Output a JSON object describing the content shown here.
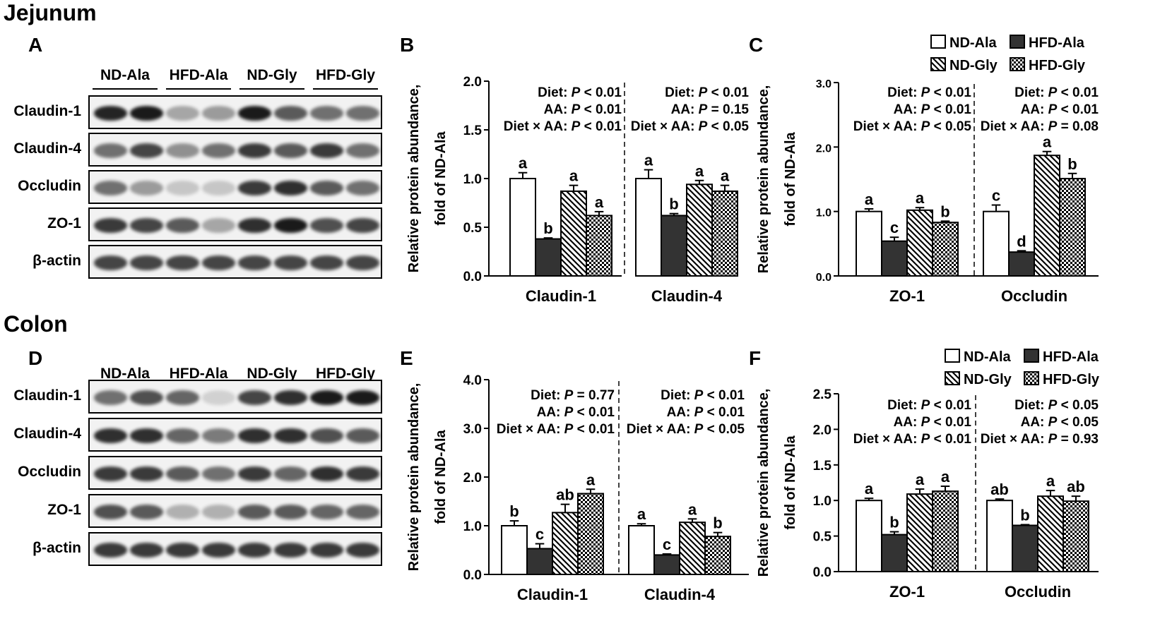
{
  "sections": {
    "jejunum": "Jejunum",
    "colon": "Colon"
  },
  "panel_letters": {
    "A": "A",
    "B": "B",
    "C": "C",
    "D": "D",
    "E": "E",
    "F": "F"
  },
  "colors": {
    "ink": "#000000",
    "hfd_fill": "#333333",
    "band": "#1a1a1a",
    "strip_bg": "#f2f2f2"
  },
  "legend": {
    "nd_ala": "ND-Ala",
    "hfd_ala": "HFD-Ala",
    "nd_gly": "ND-Gly",
    "hfd_gly": "HFD-Gly"
  },
  "blots": {
    "A": {
      "lanes": [
        "ND-Ala",
        "HFD-Ala",
        "ND-Gly",
        "HFD-Gly"
      ],
      "rows": [
        {
          "label": "Claudin-1",
          "intensity": [
            0.95,
            1.0,
            0.35,
            0.4,
            1.0,
            0.7,
            0.6,
            0.6
          ]
        },
        {
          "label": "Claudin-4",
          "intensity": [
            0.6,
            0.8,
            0.45,
            0.6,
            0.85,
            0.7,
            0.85,
            0.6
          ]
        },
        {
          "label": "Occludin",
          "intensity": [
            0.6,
            0.4,
            0.2,
            0.2,
            0.85,
            0.9,
            0.7,
            0.6
          ]
        },
        {
          "label": "ZO-1",
          "intensity": [
            0.85,
            0.8,
            0.7,
            0.35,
            0.9,
            1.0,
            0.75,
            0.8
          ]
        },
        {
          "label": "β-actin",
          "intensity": [
            0.8,
            0.8,
            0.8,
            0.8,
            0.8,
            0.8,
            0.8,
            0.8
          ]
        }
      ]
    },
    "D": {
      "lanes": [
        "ND-Ala",
        "HFD-Ala",
        "ND-Gly",
        "HFD-Gly"
      ],
      "rows": [
        {
          "label": "Claudin-1",
          "intensity": [
            0.6,
            0.75,
            0.65,
            0.15,
            0.8,
            0.9,
            1.0,
            1.0
          ]
        },
        {
          "label": "Claudin-4",
          "intensity": [
            0.9,
            0.9,
            0.65,
            0.55,
            0.9,
            0.9,
            0.75,
            0.7
          ]
        },
        {
          "label": "Occludin",
          "intensity": [
            0.85,
            0.85,
            0.7,
            0.6,
            0.85,
            0.65,
            0.9,
            0.85
          ]
        },
        {
          "label": "ZO-1",
          "intensity": [
            0.75,
            0.7,
            0.3,
            0.3,
            0.7,
            0.7,
            0.65,
            0.65
          ]
        },
        {
          "label": "β-actin",
          "intensity": [
            0.85,
            0.85,
            0.85,
            0.85,
            0.85,
            0.85,
            0.85,
            0.85
          ]
        }
      ]
    }
  },
  "chart_data": [
    {
      "panel": "B",
      "type": "bar",
      "ylabel_line1": "Relative protein abundance,",
      "ylabel_line2": "fold of ND-Ala",
      "ylim": [
        0,
        2.0
      ],
      "yticks": [
        "0.0",
        "0.5",
        "1.0",
        "1.5",
        "2.0"
      ],
      "ytick_values": [
        0,
        0.5,
        1.0,
        1.5,
        2.0
      ],
      "series_names": [
        "ND-Ala",
        "HFD-Ala",
        "ND-Gly",
        "HFD-Gly"
      ],
      "groups": [
        {
          "name": "Claudin-1",
          "values": [
            1.0,
            0.38,
            0.87,
            0.62
          ],
          "errors": [
            0.06,
            0.01,
            0.06,
            0.04
          ],
          "letters": [
            "a",
            "b",
            "a",
            "a"
          ],
          "stats": [
            [
              "Diet: ",
              "P",
              " < 0.01"
            ],
            [
              "AA: ",
              "P",
              " < 0.01"
            ],
            [
              "Diet × AA: ",
              "P",
              " < 0.01"
            ]
          ]
        },
        {
          "name": "Claudin-4",
          "values": [
            1.0,
            0.62,
            0.94,
            0.87
          ],
          "errors": [
            0.09,
            0.02,
            0.04,
            0.06
          ],
          "letters": [
            "a",
            "b",
            "a",
            "a"
          ],
          "stats": [
            [
              "Diet: ",
              "P",
              " < 0.01"
            ],
            [
              "AA: ",
              "P",
              " = 0.15"
            ],
            [
              "Diet × AA: ",
              "P",
              " < 0.05"
            ]
          ]
        }
      ]
    },
    {
      "panel": "C",
      "type": "bar",
      "ylabel_line1": "Relative protein abundance,",
      "ylabel_line2": "fold of ND-Ala",
      "ylim": [
        0,
        3.0
      ],
      "yticks": [
        "0.0",
        "1.0",
        "2.0",
        "3.0"
      ],
      "ytick_values": [
        0,
        1.0,
        2.0,
        3.0
      ],
      "series_names": [
        "ND-Ala",
        "HFD-Ala",
        "ND-Gly",
        "HFD-Gly"
      ],
      "groups": [
        {
          "name": "ZO-1",
          "values": [
            1.0,
            0.54,
            1.02,
            0.83
          ],
          "errors": [
            0.04,
            0.06,
            0.04,
            0.02
          ],
          "letters": [
            "a",
            "c",
            "a",
            "b"
          ],
          "stats": [
            [
              "Diet: ",
              "P",
              " < 0.01"
            ],
            [
              "AA: ",
              "P",
              " < 0.01"
            ],
            [
              "Diet × AA: ",
              "P",
              " < 0.05"
            ]
          ]
        },
        {
          "name": "Occludin",
          "values": [
            1.0,
            0.37,
            1.87,
            1.51
          ],
          "errors": [
            0.1,
            0.02,
            0.06,
            0.08
          ],
          "letters": [
            "c",
            "d",
            "a",
            "b"
          ],
          "stats": [
            [
              "Diet: ",
              "P",
              " < 0.01"
            ],
            [
              "AA: ",
              "P",
              " < 0.01"
            ],
            [
              "Diet × AA: ",
              "P",
              " = 0.08"
            ]
          ]
        }
      ]
    },
    {
      "panel": "E",
      "type": "bar",
      "ylabel_line1": "Relative protein abundance,",
      "ylabel_line2": "fold of ND-Ala",
      "ylim": [
        0,
        4.0
      ],
      "yticks": [
        "0.0",
        "1.0",
        "2.0",
        "3.0",
        "4.0"
      ],
      "ytick_values": [
        0,
        1.0,
        2.0,
        3.0,
        4.0
      ],
      "series_names": [
        "ND-Ala",
        "HFD-Ala",
        "ND-Gly",
        "HFD-Gly"
      ],
      "groups": [
        {
          "name": "Claudin-1",
          "values": [
            1.0,
            0.53,
            1.27,
            1.66
          ],
          "errors": [
            0.1,
            0.1,
            0.17,
            0.09
          ],
          "letters": [
            "b",
            "c",
            "ab",
            "a"
          ],
          "stats": [
            [
              "Diet: ",
              "P",
              " = 0.77"
            ],
            [
              "AA: ",
              "P",
              " < 0.01"
            ],
            [
              "Diet × AA: ",
              "P",
              " < 0.01"
            ]
          ]
        },
        {
          "name": "Claudin-4",
          "values": [
            1.0,
            0.4,
            1.07,
            0.78
          ],
          "errors": [
            0.04,
            0.02,
            0.07,
            0.08
          ],
          "letters": [
            "a",
            "c",
            "a",
            "b"
          ],
          "stats": [
            [
              "Diet: ",
              "P",
              " < 0.01"
            ],
            [
              "AA: ",
              "P",
              " < 0.01"
            ],
            [
              "Diet × AA: ",
              "P",
              " < 0.05"
            ]
          ]
        }
      ]
    },
    {
      "panel": "F",
      "type": "bar",
      "ylabel_line1": "Relative protein abundance,",
      "ylabel_line2": "fold of ND-Ala",
      "ylim": [
        0,
        2.5
      ],
      "yticks": [
        "0.0",
        "0.5",
        "1.0",
        "1.5",
        "2.0",
        "2.5"
      ],
      "ytick_values": [
        0,
        0.5,
        1.0,
        1.5,
        2.0,
        2.5
      ],
      "series_names": [
        "ND-Ala",
        "HFD-Ala",
        "ND-Gly",
        "HFD-Gly"
      ],
      "groups": [
        {
          "name": "ZO-1",
          "values": [
            1.0,
            0.52,
            1.09,
            1.13
          ],
          "errors": [
            0.03,
            0.04,
            0.07,
            0.07
          ],
          "letters": [
            "a",
            "b",
            "a",
            "a"
          ],
          "stats": [
            [
              "Diet: ",
              "P",
              " < 0.01"
            ],
            [
              "AA: ",
              "P",
              " < 0.01"
            ],
            [
              "Diet × AA: ",
              "P",
              " < 0.01"
            ]
          ]
        },
        {
          "name": "Occludin",
          "values": [
            1.0,
            0.65,
            1.06,
            0.99
          ],
          "errors": [
            0.02,
            0.01,
            0.08,
            0.07
          ],
          "letters": [
            "ab",
            "b",
            "a",
            "ab"
          ],
          "stats": [
            [
              "Diet: ",
              "P",
              " < 0.05"
            ],
            [
              "AA: ",
              "P",
              " < 0.05"
            ],
            [
              "Diet × AA: ",
              "P",
              " = 0.93"
            ]
          ]
        }
      ]
    }
  ]
}
